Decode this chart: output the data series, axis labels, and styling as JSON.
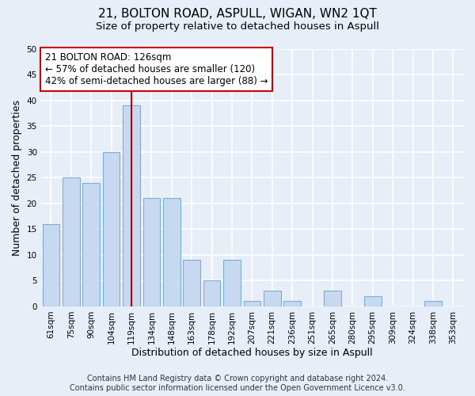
{
  "title_line1": "21, BOLTON ROAD, ASPULL, WIGAN, WN2 1QT",
  "title_line2": "Size of property relative to detached houses in Aspull",
  "xlabel": "Distribution of detached houses by size in Aspull",
  "ylabel": "Number of detached properties",
  "categories": [
    "61sqm",
    "75sqm",
    "90sqm",
    "104sqm",
    "119sqm",
    "134sqm",
    "148sqm",
    "163sqm",
    "178sqm",
    "192sqm",
    "207sqm",
    "221sqm",
    "236sqm",
    "251sqm",
    "265sqm",
    "280sqm",
    "295sqm",
    "309sqm",
    "324sqm",
    "338sqm",
    "353sqm"
  ],
  "values": [
    16,
    25,
    24,
    30,
    39,
    21,
    21,
    9,
    5,
    9,
    1,
    3,
    1,
    0,
    3,
    0,
    2,
    0,
    0,
    1,
    0
  ],
  "bar_color": "#c6d9f0",
  "bar_edge_color": "#7bafd4",
  "background_color": "#e8eef8",
  "grid_color": "#ffffff",
  "vline_x": 4,
  "vline_color": "#cc0000",
  "annotation_text": "21 BOLTON ROAD: 126sqm\n← 57% of detached houses are smaller (120)\n42% of semi-detached houses are larger (88) →",
  "annotation_box_color": "#ffffff",
  "annotation_box_edge": "#cc0000",
  "ylim": [
    0,
    50
  ],
  "yticks": [
    0,
    5,
    10,
    15,
    20,
    25,
    30,
    35,
    40,
    45,
    50
  ],
  "footnote_line1": "Contains HM Land Registry data © Crown copyright and database right 2024.",
  "footnote_line2": "Contains public sector information licensed under the Open Government Licence v3.0.",
  "title_fontsize": 11,
  "subtitle_fontsize": 9.5,
  "axis_label_fontsize": 9,
  "tick_fontsize": 7.5,
  "annotation_fontsize": 8.5,
  "footnote_fontsize": 7
}
